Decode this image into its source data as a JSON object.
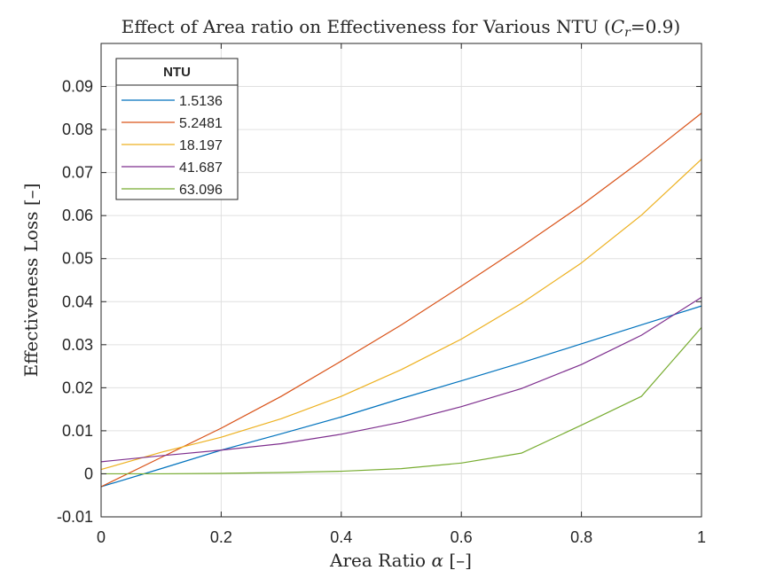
{
  "chart_data": {
    "type": "line",
    "title": "Effect of Area ratio on Effectiveness for Various NTU (",
    "title_math": "C",
    "title_math_sub": "r",
    "title_suffix": "=0.9)",
    "xlabel": "Area Ratio ",
    "xlabel_math": "α",
    "xlabel_suffix": " [–]",
    "ylabel": "Effectiveness Loss [–]",
    "xlim": [
      0,
      1
    ],
    "ylim": [
      -0.01,
      0.1
    ],
    "xticks": [
      0,
      0.2,
      0.4,
      0.6,
      0.8,
      1
    ],
    "xtick_labels": [
      "0",
      "0.2",
      "0.4",
      "0.6",
      "0.8",
      "1"
    ],
    "yticks": [
      -0.01,
      0,
      0.01,
      0.02,
      0.03,
      0.04,
      0.05,
      0.06,
      0.07,
      0.08,
      0.09
    ],
    "ytick_labels": [
      "-0.01",
      "0",
      "0.01",
      "0.02",
      "0.03",
      "0.04",
      "0.05",
      "0.06",
      "0.07",
      "0.08",
      "0.09"
    ],
    "grid": true,
    "legend": {
      "title": "NTU",
      "placement": "top-left"
    },
    "x": [
      0,
      0.1,
      0.2,
      0.3,
      0.4,
      0.5,
      0.6,
      0.7,
      0.8,
      0.9,
      1.0
    ],
    "series": [
      {
        "name": "1.5136",
        "color": "#0072BD",
        "values": [
          -0.003,
          0.0012,
          0.0055,
          0.0093,
          0.0132,
          0.0175,
          0.0216,
          0.0258,
          0.0302,
          0.0346,
          0.039
        ]
      },
      {
        "name": "5.2481",
        "color": "#D95319",
        "values": [
          -0.003,
          0.0038,
          0.0106,
          0.018,
          0.0262,
          0.0346,
          0.0436,
          0.0528,
          0.0624,
          0.0728,
          0.0838
        ]
      },
      {
        "name": "18.197",
        "color": "#EDB120",
        "values": [
          0.001,
          0.005,
          0.0085,
          0.0128,
          0.018,
          0.0242,
          0.0313,
          0.0396,
          0.049,
          0.0601,
          0.0731
        ]
      },
      {
        "name": "41.687",
        "color": "#7E2F8E",
        "values": [
          0.0028,
          0.0042,
          0.0055,
          0.007,
          0.0092,
          0.012,
          0.0156,
          0.0198,
          0.0254,
          0.0322,
          0.041
        ]
      },
      {
        "name": "63.096",
        "color": "#77AC30",
        "values": [
          0.0,
          0.0,
          0.0001,
          0.0003,
          0.0006,
          0.0012,
          0.0025,
          0.0048,
          0.0113,
          0.018,
          0.034
        ]
      }
    ]
  }
}
